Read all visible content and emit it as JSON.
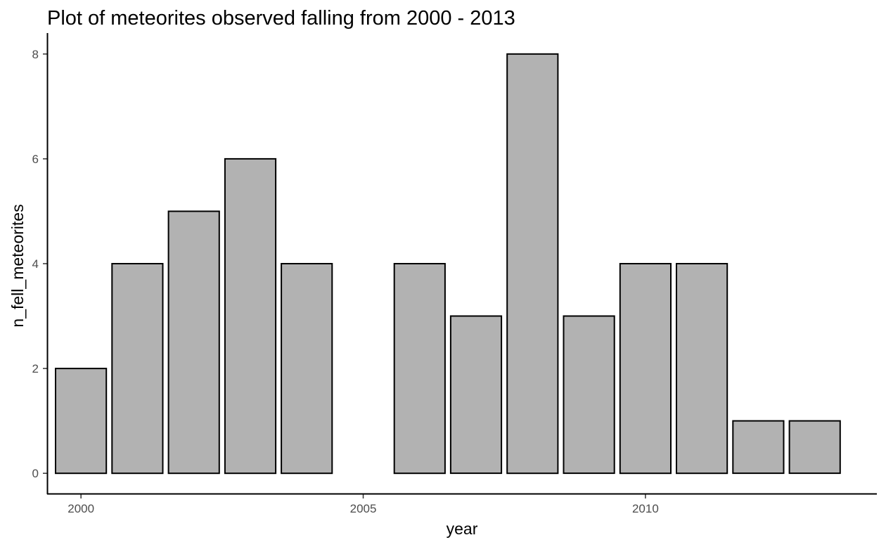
{
  "chart_data": {
    "type": "bar",
    "title": "Plot of meteorites observed falling from 2000 - 2013",
    "xlabel": "year",
    "ylabel": "n_fell_meteorites",
    "x": [
      2000,
      2001,
      2002,
      2003,
      2004,
      2006,
      2007,
      2008,
      2009,
      2010,
      2011,
      2012,
      2013
    ],
    "values": [
      2,
      4,
      5,
      6,
      4,
      4,
      3,
      8,
      3,
      4,
      4,
      1,
      1
    ],
    "xlim": [
      1999.4,
      2014.1
    ],
    "ylim": [
      -0.4,
      8.4
    ],
    "x_ticks": [
      2000,
      2005,
      2010
    ],
    "y_ticks": [
      0,
      2,
      4,
      6,
      8
    ],
    "bar_fill": "#b2b2b2",
    "bar_stroke": "#000000",
    "grid": false,
    "legend": "none"
  }
}
